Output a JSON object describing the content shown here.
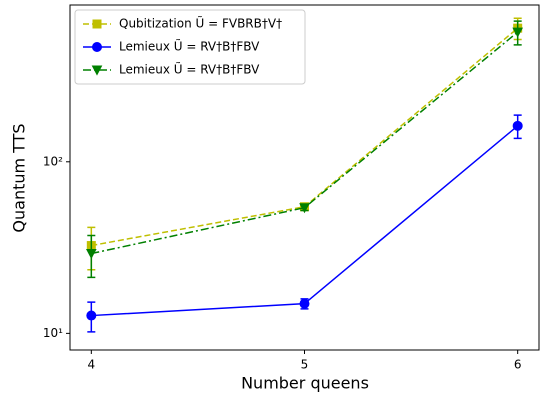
{
  "chart_data": {
    "type": "line",
    "x_label": "Number queens",
    "y_label": "Quantum TTS",
    "x": [
      4,
      5,
      6
    ],
    "xlim": [
      3.9,
      6.1
    ],
    "xticks": [
      4,
      5,
      6
    ],
    "ylim": [
      8,
      820
    ],
    "yscale": "log",
    "yticks": [
      {
        "value": 10,
        "label": "10¹"
      },
      {
        "value": 100,
        "label": "10²"
      }
    ],
    "legend": "upper left",
    "series": [
      {
        "name": "Qubitization Ũ = FVBRB†V†",
        "color": "#bfbf00",
        "linestyle": "dashed",
        "marker": "square",
        "values": [
          32.5,
          54.7,
          601
        ],
        "errors": [
          9,
          2,
          85
        ]
      },
      {
        "name": "Lemieux Ũ = RV†B†FBV",
        "color": "#0000ff",
        "linestyle": "solid",
        "marker": "circle",
        "values": [
          12.7,
          14.9,
          162
        ],
        "errors": [
          2.5,
          1,
          25
        ]
      },
      {
        "name": "Lemieux Ũ = RV†B†FBV",
        "color": "#008000",
        "linestyle": "dashdot",
        "marker": "triangle",
        "values": [
          29.2,
          54,
          570
        ],
        "errors": [
          8,
          2,
          90
        ]
      }
    ]
  }
}
